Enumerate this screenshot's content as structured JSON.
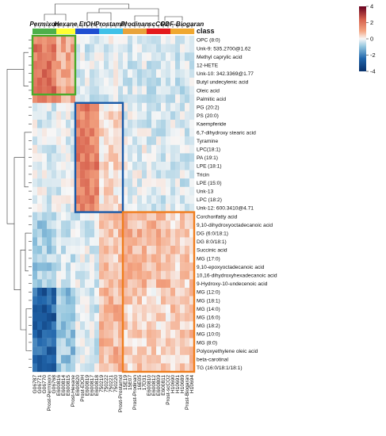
{
  "chart_data": {
    "type": "heatmap",
    "group_labels": [
      "Permixon",
      "Hexane",
      "EtOH",
      "Prostamol",
      "Prodinan",
      "scCO2",
      "PDF-Biogaran"
    ],
    "class_label": "class",
    "columns": [
      "G06787",
      "G06771",
      "G06770",
      "Prost-Permixon",
      "G06768",
      "E600816",
      "E600814",
      "E600815",
      "Prost-Hexane",
      "E600820",
      "Prost-EtOH",
      "E600819",
      "E600817",
      "E600818",
      "750219",
      "750222",
      "750221",
      "750220",
      "Prost-Prostamol",
      "15E19",
      "15E07",
      "Prost-Prodinan",
      "16E05",
      "17D31",
      "E600810",
      "E600812",
      "E600809",
      "E600811",
      "Prost-scCO2",
      "H10690",
      "H10691",
      "H10689",
      "Prost-Biogaran",
      "H10694"
    ],
    "column_groups": [
      0,
      0,
      0,
      0,
      0,
      1,
      1,
      1,
      1,
      2,
      2,
      2,
      2,
      2,
      3,
      3,
      3,
      3,
      3,
      4,
      4,
      4,
      4,
      4,
      5,
      5,
      5,
      5,
      5,
      6,
      6,
      6,
      6,
      6
    ],
    "rows": [
      "OPC (8:0)",
      "Unk-9: 535.2700@1.62",
      "Methyl caprylic acid",
      "12-HETE",
      "Unk-10: 342.3369@1.77",
      "Butyl undecylenic acid",
      "Oleic acid",
      "Palmitic acid",
      "PG (20:2)",
      "PS (20:0)",
      "Kaempferide",
      "6,7-dihydroxy stearic acid",
      "Tyramine",
      "LPC(18:1)",
      "PA (19:1)",
      "LPE (18:1)",
      "Tricin",
      "LPE (15:0)",
      "Unk-13",
      "LPC (18:2)",
      "Unk-12: 600.3410@4.71",
      "Corchorifatty acid",
      "9,10-dihydroxyoctadecanoic acid",
      "DG (6:0/18:1)",
      "DG 8:0/18:1)",
      "Succinic acid",
      "MG (17:0)",
      "9,10-epoxyoctadecanoic acid",
      "10,16-dihydroxyhexadecanoic acid",
      "9-Hydroxy-10-undecenoic acid",
      "MG (12:0)",
      "MG (18:1)",
      "MG (14:0)",
      "MG (16:0)",
      "MG (18:2)",
      "MG (10:0)",
      "MG (8:0)",
      "Polyoxyethylene oleic acid",
      "beta-carotinal",
      "TG (16:0/18:1/18:1)"
    ],
    "row_blocks": [
      {
        "rows": [
          0,
          7
        ],
        "values": [
          2.2,
          1.3,
          -0.4,
          -0.3,
          -0.4,
          -0.5,
          -0.5
        ]
      },
      {
        "rows": [
          8,
          20
        ],
        "values": [
          -0.3,
          -0.3,
          2.0,
          0.4,
          -0.2,
          -0.4,
          -0.4
        ]
      },
      {
        "rows": [
          21,
          29
        ],
        "values": [
          -1.0,
          -0.5,
          -0.3,
          0.8,
          1.0,
          0.9,
          0.6
        ]
      },
      {
        "rows": [
          30,
          39
        ],
        "values": [
          -2.8,
          -1.2,
          -0.4,
          1.0,
          0.6,
          0.5,
          0.7
        ]
      }
    ],
    "color_scale": {
      "min": -4,
      "max": 4,
      "ticks": [
        4,
        2,
        0,
        -2,
        -4
      ],
      "colors": [
        "#08306b",
        "#2166ac",
        "#92c5de",
        "#f7f7f7",
        "#f4a582",
        "#d6604d",
        "#67001f"
      ]
    },
    "group_colors": [
      "#4daf4a",
      "#ffff33",
      "#1f4fd1",
      "#3fc1e8",
      "#e8a33c",
      "#e41a1c",
      "#f0a830"
    ],
    "highlight_boxes": [
      {
        "cols": [
          0,
          8
        ],
        "rows": [
          0,
          6
        ],
        "color": "#4aaa2a"
      },
      {
        "cols": [
          9,
          18
        ],
        "rows": [
          8,
          20
        ],
        "color": "#1a5aa8"
      },
      {
        "cols": [
          19,
          33
        ],
        "rows": [
          21,
          39
        ],
        "color": "#f07e1e"
      }
    ]
  }
}
